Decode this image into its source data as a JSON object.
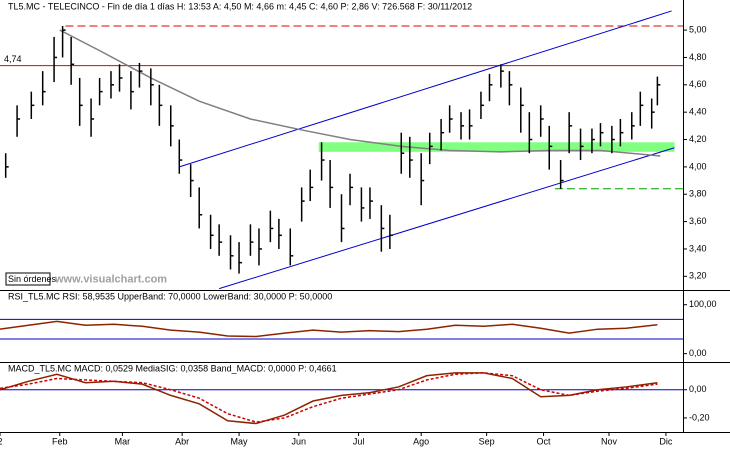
{
  "chart_data": [
    {
      "type": "ohlc",
      "title": "TL5.MC - TELECINCO - Fin de día 1 días H: 13:53 A: 4,50 M: 4,66 m: 4,45 C: 4,60 P: 2,86 V: 726.568 F: 30/11/2012",
      "annotations": [
        "Sin órdenes",
        "www.visualchart.com"
      ],
      "x": [
        2,
        6,
        11,
        15,
        19,
        22,
        25,
        28,
        32,
        35,
        39,
        42,
        46,
        49,
        53,
        56,
        60,
        63,
        67,
        70,
        74,
        77,
        81,
        84,
        88,
        91,
        95,
        98,
        102,
        106,
        109,
        113,
        116,
        120,
        123,
        127,
        130,
        134,
        137,
        141,
        144,
        148,
        151,
        155,
        158,
        162,
        165,
        169,
        172,
        176,
        179,
        183,
        186,
        190,
        193,
        197,
        200,
        204,
        208,
        211,
        215,
        218,
        222,
        225,
        229,
        231
      ],
      "high": [
        4.1,
        4.45,
        4.55,
        4.7,
        4.95,
        5.03,
        4.95,
        4.65,
        4.5,
        4.65,
        4.7,
        4.75,
        4.7,
        4.76,
        4.72,
        4.6,
        4.45,
        4.2,
        4.02,
        3.85,
        3.65,
        3.58,
        3.5,
        3.45,
        3.58,
        3.55,
        3.68,
        3.62,
        3.55,
        3.85,
        3.98,
        4.18,
        4.05,
        3.8,
        3.95,
        3.85,
        3.85,
        3.72,
        3.65,
        4.25,
        4.22,
        4.1,
        4.25,
        4.35,
        4.45,
        4.4,
        4.42,
        4.55,
        4.68,
        4.75,
        4.7,
        4.58,
        4.4,
        4.45,
        4.3,
        4.05,
        4.4,
        4.28,
        4.28,
        4.32,
        4.3,
        4.35,
        4.4,
        4.55,
        4.5,
        4.66
      ],
      "low": [
        3.92,
        4.22,
        4.35,
        4.45,
        4.62,
        4.8,
        4.6,
        4.3,
        4.22,
        4.45,
        4.5,
        4.55,
        4.42,
        4.58,
        4.45,
        4.3,
        4.15,
        3.95,
        3.78,
        3.55,
        3.4,
        3.35,
        3.25,
        3.22,
        3.35,
        3.28,
        3.45,
        3.4,
        3.28,
        3.6,
        3.75,
        3.9,
        3.7,
        3.45,
        3.72,
        3.6,
        3.62,
        3.38,
        3.4,
        3.95,
        3.92,
        3.72,
        4.02,
        4.12,
        4.25,
        4.2,
        4.2,
        4.35,
        4.48,
        4.58,
        4.45,
        4.25,
        4.1,
        4.22,
        3.98,
        3.84,
        4.1,
        4.05,
        4.1,
        4.15,
        4.1,
        4.15,
        4.2,
        4.3,
        4.28,
        4.45
      ],
      "close": [
        4.0,
        4.35,
        4.45,
        4.55,
        4.8,
        5.0,
        4.75,
        4.45,
        4.35,
        4.55,
        4.6,
        4.65,
        4.55,
        4.7,
        4.6,
        4.45,
        4.3,
        4.05,
        3.9,
        3.65,
        3.5,
        3.45,
        3.35,
        3.3,
        3.45,
        3.4,
        3.55,
        3.5,
        3.35,
        3.75,
        3.85,
        4.05,
        3.85,
        3.55,
        3.85,
        3.7,
        3.75,
        3.55,
        3.5,
        4.1,
        4.05,
        3.9,
        4.15,
        4.25,
        4.35,
        4.3,
        4.3,
        4.45,
        4.6,
        4.7,
        4.6,
        4.45,
        4.2,
        4.35,
        4.15,
        3.9,
        4.3,
        4.15,
        4.2,
        4.25,
        4.2,
        4.25,
        4.3,
        4.45,
        4.4,
        4.6
      ],
      "color": "#000000",
      "overlays": [
        {
          "color": "#808080",
          "x": [
            21,
            35,
            53,
            70,
            88,
            106,
            123,
            141,
            158,
            176,
            193,
            211,
            232
          ],
          "values": [
            5.0,
            4.85,
            4.65,
            4.48,
            4.35,
            4.27,
            4.2,
            4.15,
            4.12,
            4.11,
            4.12,
            4.12,
            4.08
          ]
        }
      ],
      "trendlines": [
        {
          "color": "#0000cc",
          "x": [
            63,
            236
          ],
          "y": [
            4.0,
            5.14
          ]
        },
        {
          "color": "#0000cc",
          "x": [
            77,
            237
          ],
          "y": [
            3.11,
            4.14
          ]
        }
      ],
      "band": {
        "color": "#80ff80",
        "x": [
          112,
          237
        ],
        "y": [
          4.11,
          4.18
        ]
      },
      "hlines": [
        {
          "value": 5.03,
          "color": "#e00000",
          "style": "dashed",
          "from": 23
        },
        {
          "value": {
            "value": 4.74,
            "label": "4,74"
          },
          "color": "#e00000",
          "style": "solid",
          "from": 0
        },
        {
          "value": 3.84,
          "color": "#00a000",
          "style": "dashed",
          "from": 195
        }
      ],
      "xlim": [
        0,
        240
      ],
      "ylim": [
        3.1,
        5.22
      ],
      "yticks": [
        {
          "value": 3.2,
          "label": "3,20"
        },
        {
          "value": 3.4,
          "label": "3,40"
        },
        {
          "value": 3.6,
          "label": "3,60"
        },
        {
          "value": 3.8,
          "label": "3,80"
        },
        {
          "value": 4.0,
          "label": "4,00"
        },
        {
          "value": 4.2,
          "label": "4,20"
        },
        {
          "value": 4.4,
          "label": "4,40"
        },
        {
          "value": 4.6,
          "label": "4,60"
        },
        {
          "value": 4.8,
          "label": "4,80"
        },
        {
          "value": 5.0,
          "label": "5,00"
        }
      ]
    },
    {
      "type": "line",
      "title": "RSI_TL5.MC RSI: 58,9535 UpperBand: 70,0000 LowerBand: 30,0000 P: 50,0000",
      "x": [
        0,
        10,
        20,
        30,
        40,
        50,
        60,
        70,
        80,
        90,
        100,
        110,
        120,
        130,
        140,
        150,
        160,
        170,
        180,
        190,
        200,
        210,
        220,
        231
      ],
      "series": [
        {
          "color": "#8b2500",
          "style": "solid",
          "values": [
            50,
            58,
            66,
            58,
            60,
            56,
            48,
            44,
            36,
            35,
            42,
            48,
            44,
            47,
            45,
            50,
            58,
            56,
            60,
            52,
            42,
            50,
            52,
            59
          ]
        }
      ],
      "hlines": [
        {
          "value": 70,
          "color": "#0000cc",
          "style": "solid",
          "from": 0
        },
        {
          "value": 30,
          "color": "#0000cc",
          "style": "solid",
          "from": 0
        }
      ],
      "xlim": [
        0,
        240
      ],
      "ylim": [
        -17,
        128
      ],
      "yticks": [
        {
          "value": 0,
          "label": "0,00"
        },
        {
          "value": 100,
          "label": "100,00"
        }
      ]
    },
    {
      "type": "line",
      "title": "MACD_TL5.MC MACD: 0,0529 MediaSIG: 0,0358 Band_MACD: 0,0000 P: 0,4661",
      "x": [
        0,
        10,
        20,
        30,
        40,
        50,
        60,
        70,
        80,
        90,
        100,
        110,
        120,
        130,
        140,
        150,
        160,
        170,
        180,
        190,
        200,
        210,
        220,
        231
      ],
      "series": [
        {
          "color": "#8b2500",
          "style": "solid",
          "values": [
            0.0,
            0.06,
            0.11,
            0.05,
            0.06,
            0.04,
            -0.04,
            -0.1,
            -0.22,
            -0.24,
            -0.18,
            -0.08,
            -0.04,
            -0.02,
            0.02,
            0.1,
            0.12,
            0.12,
            0.08,
            -0.05,
            -0.04,
            0.0,
            0.02,
            0.05
          ]
        },
        {
          "color": "#cc0000",
          "style": "dashed",
          "values": [
            0.01,
            0.04,
            0.08,
            0.07,
            0.06,
            0.05,
            0.0,
            -0.06,
            -0.17,
            -0.23,
            -0.2,
            -0.12,
            -0.06,
            -0.03,
            0.0,
            0.07,
            0.11,
            0.12,
            0.1,
            0.0,
            -0.04,
            -0.01,
            0.01,
            0.04
          ]
        }
      ],
      "hlines": [
        {
          "value": 0,
          "color": "#0000cc",
          "style": "solid",
          "from": 0
        }
      ],
      "xlim": [
        0,
        240
      ],
      "ylim": [
        -0.3,
        0.19
      ],
      "yticks": [
        {
          "value": -0.2,
          "label": "-0,20"
        },
        {
          "value": 0,
          "label": "0,00"
        }
      ],
      "xticks": [
        {
          "value": 0,
          "label": "2"
        },
        {
          "value": 21,
          "label": "Feb"
        },
        {
          "value": 43,
          "label": "Mar"
        },
        {
          "value": 64,
          "label": "Abr"
        },
        {
          "value": 84,
          "label": "May"
        },
        {
          "value": 105,
          "label": "Jun"
        },
        {
          "value": 126,
          "label": "Jul"
        },
        {
          "value": 148,
          "label": "Ago"
        },
        {
          "value": 171,
          "label": "Sep"
        },
        {
          "value": 191,
          "label": "Oct"
        },
        {
          "value": 214,
          "label": "Nov"
        },
        {
          "value": 234,
          "label": "Dic"
        }
      ]
    }
  ]
}
